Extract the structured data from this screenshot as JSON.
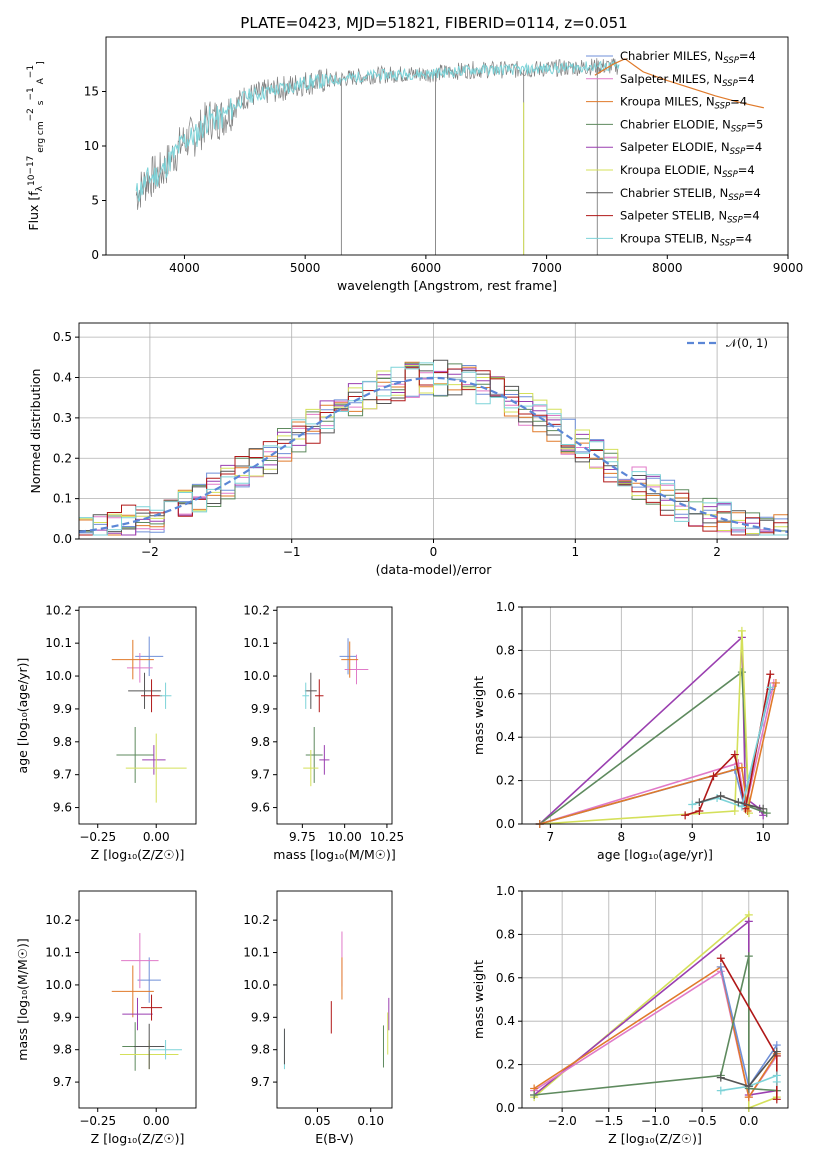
{
  "figure_title": "PLATE=0423, MJD=51821, FIBERID=0114, z=0.051",
  "colors": {
    "chabrier_miles": "#6f8fd8",
    "salpeter_miles": "#e07ac8",
    "kroupa_miles": "#e07a2a",
    "chabrier_elodie": "#5e8a5e",
    "salpeter_elodie": "#9a3fb0",
    "kroupa_elodie": "#d4e05a",
    "chabrier_stelib": "#555555",
    "salpeter_stelib": "#b01818",
    "kroupa_stelib": "#7dd3d8",
    "observed": "#808080",
    "normal": "#5b86d6"
  },
  "chart_data": [
    {
      "type": "line",
      "xlabel": "wavelength [Angstrom, rest frame]",
      "ylabel_parts": [
        "Flux [f",
        "λ",
        "10",
        "−17",
        " erg cm",
        "−2",
        " s",
        "−1",
        " A",
        "−1",
        "]"
      ],
      "xlim": [
        3350,
        9000
      ],
      "ylim": [
        0,
        20
      ],
      "xticks": [
        "4000",
        "5000",
        "6000",
        "7000",
        "8000",
        "9000"
      ],
      "yticks": [
        "0",
        "5",
        "10",
        "15"
      ],
      "legend_position": "right",
      "legend": [
        {
          "name": "Chabrier MILES",
          "nssp": "4"
        },
        {
          "name": "Salpeter MILES",
          "nssp": "4"
        },
        {
          "name": "Kroupa MILES",
          "nssp": "4"
        },
        {
          "name": "Chabrier ELODIE",
          "nssp": "5"
        },
        {
          "name": "Salpeter ELODIE",
          "nssp": "4"
        },
        {
          "name": "Kroupa ELODIE",
          "nssp": "4"
        },
        {
          "name": "Chabrier STELIB",
          "nssp": "4"
        },
        {
          "name": "Salpeter STELIB",
          "nssp": "4"
        },
        {
          "name": "Kroupa STELIB",
          "nssp": "4"
        }
      ],
      "nssp_label": "N",
      "nssp_sub": "SSP",
      "observed_range": [
        3600,
        7600
      ],
      "model_range": [
        3600,
        7600
      ],
      "continuum": [
        [
          3600,
          5.5
        ],
        [
          3700,
          7.0
        ],
        [
          3800,
          7.5
        ],
        [
          3900,
          9.0
        ],
        [
          4000,
          10.5
        ],
        [
          4100,
          11.0
        ],
        [
          4200,
          12.5
        ],
        [
          4300,
          12.5
        ],
        [
          4400,
          13.5
        ],
        [
          4500,
          14.5
        ],
        [
          4700,
          15.0
        ],
        [
          4900,
          15.5
        ],
        [
          5000,
          15.8
        ],
        [
          5200,
          16.0
        ],
        [
          5400,
          16.3
        ],
        [
          5600,
          16.5
        ],
        [
          5800,
          16.6
        ],
        [
          6000,
          16.6
        ],
        [
          6200,
          16.8
        ],
        [
          6400,
          17.0
        ],
        [
          6600,
          17.0
        ],
        [
          6800,
          17.0
        ],
        [
          7000,
          17.1
        ],
        [
          7200,
          17.2
        ],
        [
          7400,
          17.3
        ],
        [
          7600,
          17.3
        ]
      ],
      "red_model_extension": [
        [
          7400,
          16.5
        ],
        [
          7550,
          17.5
        ],
        [
          7650,
          18.0
        ],
        [
          7800,
          16.8
        ],
        [
          8000,
          16.0
        ],
        [
          8200,
          15.3
        ],
        [
          8400,
          14.6
        ],
        [
          8600,
          14.0
        ],
        [
          8800,
          13.5
        ]
      ],
      "absorption_lines": [
        5300,
        6080,
        6810,
        7420
      ]
    },
    {
      "type": "line",
      "xlabel": "(data-model)/error",
      "ylabel": "Normed distribution",
      "xlim": [
        -2.5,
        2.5
      ],
      "ylim": [
        0,
        0.535
      ],
      "xticks": [
        "−2",
        "−1",
        "0",
        "1",
        "2"
      ],
      "yticks": [
        "0.0",
        "0.1",
        "0.2",
        "0.3",
        "0.4",
        "0.5"
      ],
      "grid": true,
      "legend_position": "top-right",
      "normal_label": "𝒩(0, 1)",
      "hist_bin_width": 0.1,
      "hist_start": -2.5,
      "hist_values": [
        0.02,
        0.025,
        0.03,
        0.035,
        0.04,
        0.05,
        0.045,
        0.05,
        0.06,
        0.065,
        0.075,
        0.085,
        0.1,
        0.11,
        0.12,
        0.14,
        0.17,
        0.18,
        0.2,
        0.22,
        0.23,
        0.24,
        0.25,
        0.27,
        0.28,
        0.29,
        0.3,
        0.32,
        0.33,
        0.34,
        0.35,
        0.36,
        0.37,
        0.38,
        0.39,
        0.4,
        0.41,
        0.42,
        0.43,
        0.44,
        0.45,
        0.43,
        0.42,
        0.4,
        0.39,
        0.38,
        0.37,
        0.36,
        0.35,
        0.34
      ]
    },
    {
      "type": "scatter",
      "xlabel": "Z [log₁₀(Z/Z☉)]",
      "ylabel": "age  [log₁₀(age/yr)]",
      "xlim": [
        -0.33,
        0.17
      ],
      "ylim": [
        9.55,
        10.21
      ],
      "xticks": [
        "−0.25",
        "0.00"
      ],
      "yticks": [
        "9.6",
        "9.7",
        "9.8",
        "9.9",
        "10.0",
        "10.1",
        "10.2"
      ],
      "crosses": [
        {
          "c": "#6f8fd8",
          "x": -0.03,
          "y": 10.06,
          "ex": 0.12,
          "ey": 0.12
        },
        {
          "c": "#e07ac8",
          "x": -0.07,
          "y": 10.025,
          "ex": 0.11,
          "ey": 0.09
        },
        {
          "c": "#e07a2a",
          "x": -0.1,
          "y": 10.05,
          "ex": 0.18,
          "ey": 0.12
        },
        {
          "c": "#5e8a5e",
          "x": -0.09,
          "y": 9.76,
          "ex": 0.16,
          "ey": 0.17
        },
        {
          "c": "#9a3fb0",
          "x": -0.01,
          "y": 9.745,
          "ex": 0.1,
          "ey": 0.09
        },
        {
          "c": "#d4e05a",
          "x": 0.0,
          "y": 9.72,
          "ex": 0.26,
          "ey": 0.21
        },
        {
          "c": "#555555",
          "x": -0.05,
          "y": 9.955,
          "ex": 0.14,
          "ey": 0.11
        },
        {
          "c": "#b01818",
          "x": -0.02,
          "y": 9.94,
          "ex": 0.09,
          "ey": 0.1
        },
        {
          "c": "#7dd3d8",
          "x": 0.04,
          "y": 9.94,
          "ex": 0.05,
          "ey": 0.08
        }
      ]
    },
    {
      "type": "scatter",
      "xlabel": "mass [log₁₀(M/M☉)]",
      "ylabel": "",
      "xlim": [
        9.6,
        10.28
      ],
      "ylim": [
        9.55,
        10.21
      ],
      "xticks": [
        "9.75",
        "10.00",
        "10.25"
      ],
      "yticks": [
        "9.6",
        "9.7",
        "9.8",
        "9.9",
        "10.0",
        "10.1",
        "10.2"
      ],
      "crosses": [
        {
          "c": "#6f8fd8",
          "x": 10.02,
          "y": 10.06,
          "ex": 0.1,
          "ey": 0.11
        },
        {
          "c": "#e07ac8",
          "x": 10.07,
          "y": 10.02,
          "ex": 0.14,
          "ey": 0.09
        },
        {
          "c": "#e07a2a",
          "x": 10.03,
          "y": 10.05,
          "ex": 0.1,
          "ey": 0.11
        },
        {
          "c": "#5e8a5e",
          "x": 9.82,
          "y": 9.76,
          "ex": 0.1,
          "ey": 0.17
        },
        {
          "c": "#9a3fb0",
          "x": 9.88,
          "y": 9.745,
          "ex": 0.06,
          "ey": 0.09
        },
        {
          "c": "#d4e05a",
          "x": 9.8,
          "y": 9.72,
          "ex": 0.09,
          "ey": 0.11
        },
        {
          "c": "#555555",
          "x": 9.8,
          "y": 9.955,
          "ex": 0.07,
          "ey": 0.11
        },
        {
          "c": "#b01818",
          "x": 9.85,
          "y": 9.94,
          "ex": 0.05,
          "ey": 0.1
        },
        {
          "c": "#7dd3d8",
          "x": 9.77,
          "y": 9.94,
          "ex": 0.04,
          "ey": 0.08
        }
      ]
    },
    {
      "type": "line",
      "xlabel": "age  [log₁₀(age/yr)]",
      "ylabel": "mass weight",
      "xlim": [
        6.6,
        10.35
      ],
      "ylim": [
        0,
        1.0
      ],
      "xticks": [
        "7",
        "8",
        "9",
        "10"
      ],
      "yticks": [
        "0.0",
        "0.2",
        "0.4",
        "0.6",
        "0.8",
        "1.0"
      ],
      "grid": true,
      "series": [
        {
          "c": "#9a3fb0",
          "pts": [
            [
              6.85,
              0.0
            ],
            [
              9.7,
              0.86
            ],
            [
              9.75,
              0.12
            ],
            [
              9.95,
              0.07
            ],
            [
              10.0,
              0.04
            ]
          ]
        },
        {
          "c": "#5e8a5e",
          "pts": [
            [
              6.85,
              0.0
            ],
            [
              9.7,
              0.7
            ],
            [
              9.8,
              0.08
            ],
            [
              10.05,
              0.05
            ]
          ]
        },
        {
          "c": "#d4e05a",
          "pts": [
            [
              6.85,
              0.0
            ],
            [
              9.6,
              0.06
            ],
            [
              9.7,
              0.89
            ],
            [
              9.8,
              0.05
            ]
          ]
        },
        {
          "c": "#e07ac8",
          "pts": [
            [
              6.85,
              0.0
            ],
            [
              9.65,
              0.28
            ],
            [
              9.75,
              0.07
            ],
            [
              10.15,
              0.65
            ]
          ]
        },
        {
          "c": "#6f8fd8",
          "pts": [
            [
              6.85,
              0.0
            ],
            [
              9.6,
              0.25
            ],
            [
              9.72,
              0.1
            ],
            [
              10.1,
              0.62
            ]
          ]
        },
        {
          "c": "#e07a2a",
          "pts": [
            [
              6.85,
              0.0
            ],
            [
              9.7,
              0.26
            ],
            [
              9.78,
              0.06
            ],
            [
              10.18,
              0.65
            ]
          ]
        },
        {
          "c": "#b01818",
          "pts": [
            [
              8.9,
              0.04
            ],
            [
              9.1,
              0.06
            ],
            [
              9.3,
              0.22
            ],
            [
              9.6,
              0.32
            ],
            [
              9.75,
              0.07
            ],
            [
              10.1,
              0.69
            ]
          ]
        },
        {
          "c": "#7dd3d8",
          "pts": [
            [
              9.0,
              0.09
            ],
            [
              9.35,
              0.12
            ],
            [
              9.7,
              0.08
            ],
            [
              10.1,
              0.63
            ]
          ]
        },
        {
          "c": "#555555",
          "pts": [
            [
              9.1,
              0.1
            ],
            [
              9.4,
              0.13
            ],
            [
              9.65,
              0.1
            ],
            [
              10.0,
              0.07
            ]
          ]
        }
      ]
    },
    {
      "type": "scatter",
      "xlabel": "Z [log₁₀(Z/Z☉)]",
      "ylabel": "mass [log₁₀(M/M☉)]",
      "xlim": [
        -0.33,
        0.17
      ],
      "ylim": [
        9.62,
        10.29
      ],
      "xticks": [
        "−0.25",
        "0.00"
      ],
      "yticks": [
        "9.7",
        "9.8",
        "9.9",
        "10.0",
        "10.1",
        "10.2"
      ],
      "crosses": [
        {
          "c": "#6f8fd8",
          "x": -0.03,
          "y": 10.015,
          "ex": 0.1,
          "ey": 0.14
        },
        {
          "c": "#e07ac8",
          "x": -0.07,
          "y": 10.075,
          "ex": 0.16,
          "ey": 0.17
        },
        {
          "c": "#e07a2a",
          "x": -0.1,
          "y": 9.98,
          "ex": 0.18,
          "ey": 0.16
        },
        {
          "c": "#5e8a5e",
          "x": -0.09,
          "y": 9.81,
          "ex": 0.11,
          "ey": 0.15
        },
        {
          "c": "#9a3fb0",
          "x": -0.08,
          "y": 9.91,
          "ex": 0.13,
          "ey": 0.1
        },
        {
          "c": "#d4e05a",
          "x": -0.03,
          "y": 9.785,
          "ex": 0.25,
          "ey": 0.09
        },
        {
          "c": "#555555",
          "x": -0.03,
          "y": 9.81,
          "ex": 0.13,
          "ey": 0.14
        },
        {
          "c": "#b01818",
          "x": -0.02,
          "y": 9.93,
          "ex": 0.09,
          "ey": 0.08
        },
        {
          "c": "#7dd3d8",
          "x": 0.04,
          "y": 9.8,
          "ex": 0.14,
          "ey": 0.06
        }
      ]
    },
    {
      "type": "scatter",
      "xlabel": "E(B-V)",
      "ylabel": "",
      "xlim": [
        0.012,
        0.12
      ],
      "ylim": [
        9.62,
        10.29
      ],
      "xticks": [
        "0.05",
        "0.10"
      ],
      "yticks": [
        "9.7",
        "9.8",
        "9.9",
        "10.0",
        "10.1",
        "10.2"
      ],
      "crosses": [
        {
          "c": "#7dd3d8",
          "x": 0.019,
          "y": 9.8,
          "ey": 0.12
        },
        {
          "c": "#555555",
          "x": 0.019,
          "y": 9.81,
          "ey": 0.11
        },
        {
          "c": "#b01818",
          "x": 0.063,
          "y": 9.9,
          "ey": 0.1
        },
        {
          "c": "#e07ac8",
          "x": 0.073,
          "y": 10.08,
          "ey": 0.17
        },
        {
          "c": "#e07a2a",
          "x": 0.073,
          "y": 10.02,
          "ey": 0.13
        },
        {
          "c": "#5e8a5e",
          "x": 0.112,
          "y": 9.81,
          "ey": 0.13
        },
        {
          "c": "#9a3fb0",
          "x": 0.117,
          "y": 9.91,
          "ey": 0.1
        },
        {
          "c": "#d4e05a",
          "x": 0.116,
          "y": 9.85,
          "ey": 0.13
        }
      ]
    },
    {
      "type": "line",
      "xlabel": "Z [log₁₀(Z/Z☉)]",
      "ylabel": "mass weight",
      "xlim": [
        -2.43,
        0.42
      ],
      "ylim": [
        0,
        1.0
      ],
      "xticks": [
        "−2.0",
        "−1.5",
        "−1.0",
        "−0.5",
        "0.0"
      ],
      "yticks": [
        "0.0",
        "0.2",
        "0.4",
        "0.6",
        "0.8",
        "1.0"
      ],
      "grid": true,
      "series": [
        {
          "c": "#d4e05a",
          "pts": [
            [
              -2.3,
              0.05
            ],
            [
              0.0,
              0.89
            ],
            [
              0.0,
              0.0
            ],
            [
              0.3,
              0.05
            ]
          ]
        },
        {
          "c": "#9a3fb0",
          "pts": [
            [
              -2.3,
              0.06
            ],
            [
              0.0,
              0.86
            ],
            [
              0.0,
              0.06
            ],
            [
              0.3,
              0.08
            ]
          ]
        },
        {
          "c": "#e07ac8",
          "pts": [
            [
              -2.3,
              0.08
            ],
            [
              -0.3,
              0.63
            ],
            [
              0.0,
              0.05
            ],
            [
              0.3,
              0.24
            ]
          ]
        },
        {
          "c": "#e07a2a",
          "pts": [
            [
              -2.3,
              0.09
            ],
            [
              -0.3,
              0.65
            ],
            [
              0.0,
              0.05
            ],
            [
              0.3,
              0.25
            ]
          ]
        },
        {
          "c": "#6f8fd8",
          "pts": [
            [
              -0.3,
              0.65
            ],
            [
              0.0,
              0.1
            ],
            [
              0.3,
              0.29
            ]
          ]
        },
        {
          "c": "#5e8a5e",
          "pts": [
            [
              -2.3,
              0.06
            ],
            [
              -0.3,
              0.15
            ],
            [
              0.0,
              0.7
            ],
            [
              0.0,
              0.09
            ],
            [
              0.3,
              0.08
            ]
          ]
        },
        {
          "c": "#b01818",
          "pts": [
            [
              -0.3,
              0.69
            ],
            [
              0.3,
              0.24
            ],
            [
              0.3,
              0.04
            ]
          ]
        },
        {
          "c": "#7dd3d8",
          "pts": [
            [
              -0.3,
              0.08
            ],
            [
              0.0,
              0.1
            ],
            [
              0.3,
              0.15
            ],
            [
              0.3,
              0.12
            ]
          ]
        },
        {
          "c": "#555555",
          "pts": [
            [
              -0.3,
              0.14
            ],
            [
              0.0,
              0.1
            ],
            [
              0.3,
              0.26
            ]
          ]
        }
      ]
    }
  ]
}
